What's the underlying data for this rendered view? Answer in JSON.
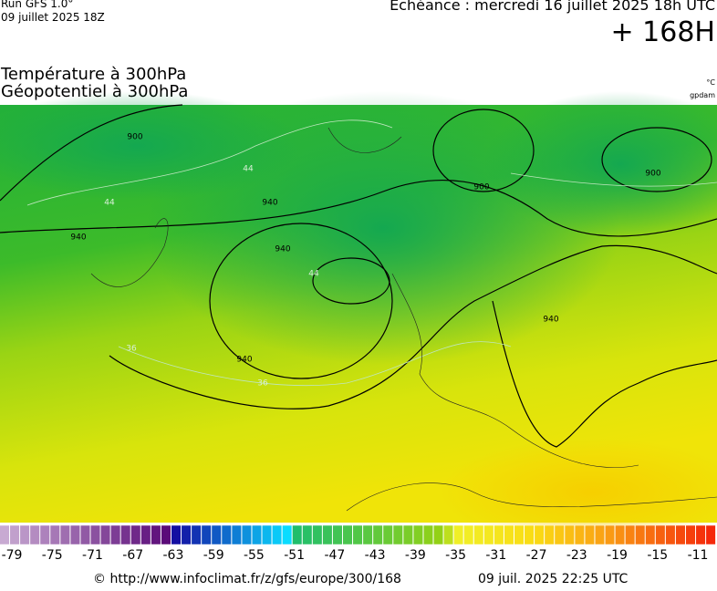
{
  "header": {
    "run": "Run GFS 1.0°",
    "run_date": "09 juillet 2025 18Z",
    "valid": "Echéance : mercredi 16 juillet 2025 18h UTC",
    "lead": "+ 168H"
  },
  "title": {
    "line1": "Température à 300hPa",
    "line2": "Géopotentiel à 300hPa",
    "unit1": "°C",
    "unit2": "gpdam"
  },
  "map": {
    "contour_labels": [
      "900",
      "900",
      "900",
      "940",
      "940",
      "940",
      "940",
      "940",
      "44",
      "44",
      "44",
      "36",
      "36"
    ]
  },
  "colorbar": {
    "ticks": [
      -79,
      -75,
      -71,
      -67,
      -63,
      -59,
      -55,
      -51,
      -47,
      -43,
      -39,
      -35,
      -31,
      -27,
      -23,
      -19,
      -15,
      -11
    ]
  },
  "footer": {
    "url": "© http://www.infoclimat.fr/z/gfs/europe/300/168",
    "date": "09 juil. 2025 22:25 UTC"
  }
}
